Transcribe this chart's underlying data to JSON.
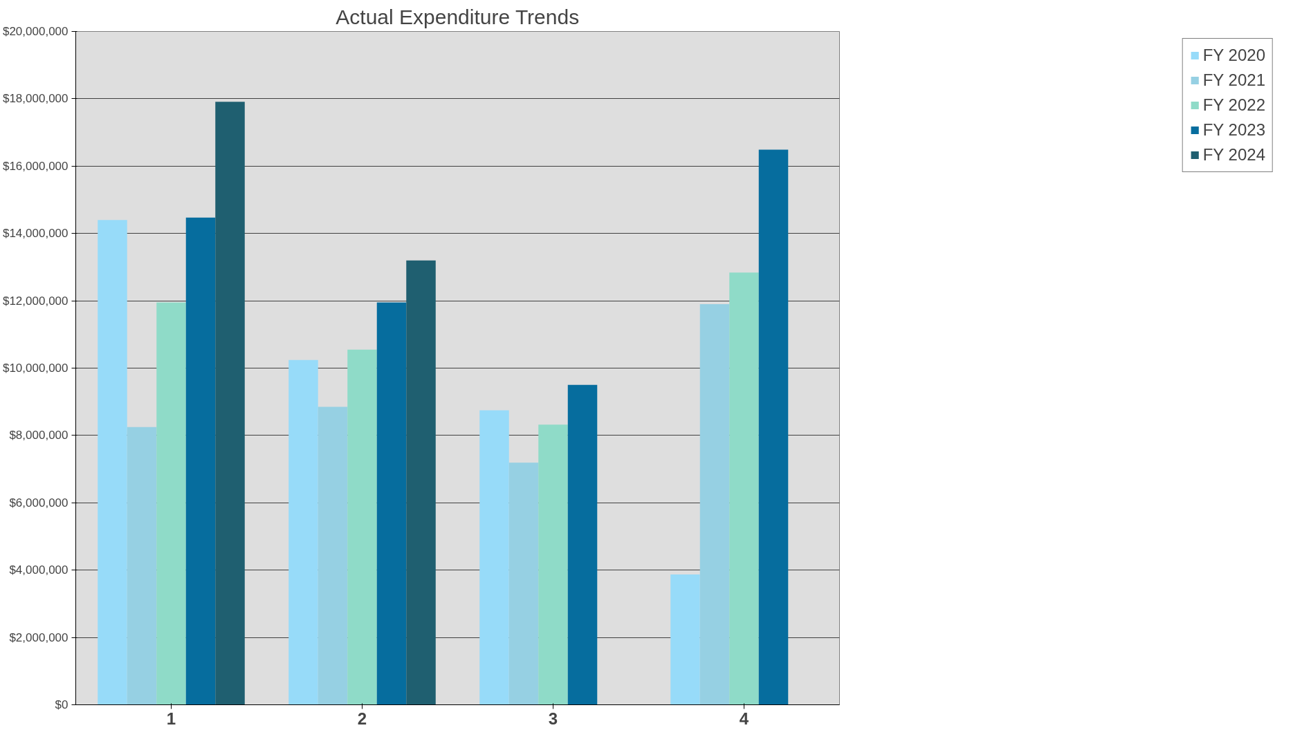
{
  "chart_data": {
    "type": "bar",
    "title": "Actual Expenditure Trends",
    "categories": [
      "1",
      "2",
      "3",
      "4"
    ],
    "series": [
      {
        "name": "FY 2020",
        "color": "#97dbf9",
        "values": [
          14400000,
          10240000,
          8750000,
          3870000
        ]
      },
      {
        "name": "FY 2021",
        "color": "#96d0e3",
        "values": [
          8250000,
          8850000,
          7190000,
          11900000
        ]
      },
      {
        "name": "FY 2022",
        "color": "#8fdbc8",
        "values": [
          11950000,
          10550000,
          8320000,
          12840000
        ]
      },
      {
        "name": "FY 2023",
        "color": "#066d9e",
        "values": [
          14470000,
          11950000,
          9500000,
          16490000
        ]
      },
      {
        "name": "FY 2024",
        "color": "#1f5f70",
        "values": [
          17910000,
          13200000,
          null,
          null
        ]
      }
    ],
    "ylim": [
      0,
      20000000
    ],
    "yticks": [
      {
        "value": 0,
        "label": "$0"
      },
      {
        "value": 2000000,
        "label": "$2,000,000"
      },
      {
        "value": 4000000,
        "label": "$4,000,000"
      },
      {
        "value": 6000000,
        "label": "$6,000,000"
      },
      {
        "value": 8000000,
        "label": "$8,000,000"
      },
      {
        "value": 10000000,
        "label": "$10,000,000"
      },
      {
        "value": 12000000,
        "label": "$12,000,000"
      },
      {
        "value": 14000000,
        "label": "$14,000,000"
      },
      {
        "value": 16000000,
        "label": "$16,000,000"
      },
      {
        "value": 18000000,
        "label": "$18,000,000"
      },
      {
        "value": 20000000,
        "label": "$20,000,000"
      }
    ],
    "grid": "y",
    "legend": "right"
  }
}
